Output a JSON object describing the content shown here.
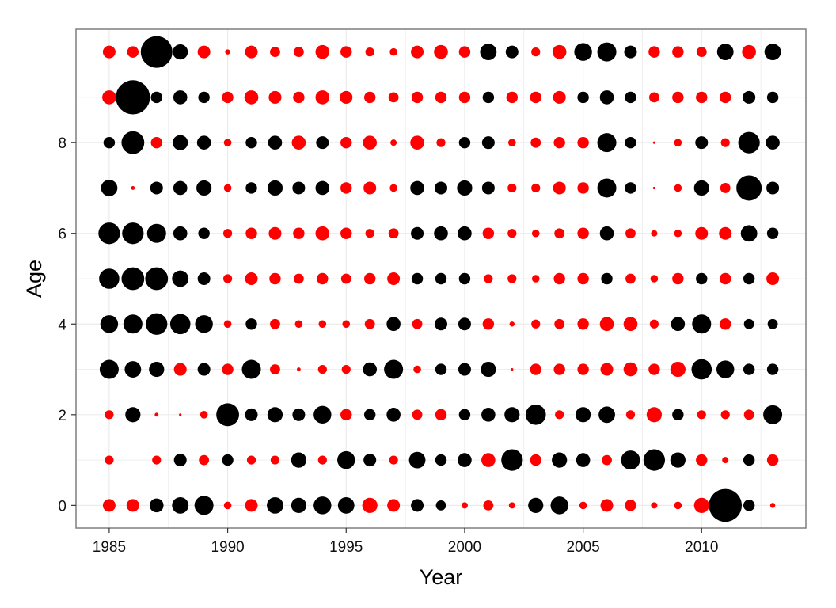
{
  "chart_data": {
    "type": "scatter",
    "xlabel": "Year",
    "ylabel": "Age",
    "xlim": [
      1983.6,
      2014.4
    ],
    "ylim": [
      -0.5,
      10.5
    ],
    "x_ticks": [
      1985,
      1990,
      1995,
      2000,
      2005,
      2010
    ],
    "y_ticks": [
      0,
      2,
      4,
      6,
      8
    ],
    "grid": true,
    "legend": "none",
    "colors": {
      "positive": "#000000",
      "negative": "#ff0000",
      "panel_border": "#7f7f7f",
      "grid": "#ebebeb"
    },
    "encoding": "size shows magnitude; black marks are positive values, red marks are negative values",
    "years": [
      1985,
      1986,
      1987,
      1988,
      1989,
      1990,
      1991,
      1992,
      1993,
      1994,
      1995,
      1996,
      1997,
      1998,
      1999,
      2000,
      2001,
      2002,
      2003,
      2004,
      2005,
      2006,
      2007,
      2008,
      2009,
      2010,
      2011,
      2012,
      2013
    ],
    "ages": [
      0,
      1,
      2,
      3,
      4,
      5,
      6,
      7,
      8,
      9,
      10
    ],
    "values": [
      [
        -0.5,
        -0.5,
        0.55,
        0.65,
        0.75,
        -0.3,
        -0.5,
        0.65,
        0.6,
        0.7,
        0.65,
        -0.6,
        -0.5,
        0.5,
        0.4,
        -0.25,
        -0.4,
        -0.25,
        0.6,
        0.7,
        -0.3,
        -0.5,
        -0.45,
        -0.25,
        -0.3,
        -0.6,
        1.3,
        0.45,
        -0.2
      ],
      [
        -0.35,
        0,
        -0.35,
        0.5,
        -0.4,
        0.45,
        -0.35,
        -0.35,
        0.6,
        -0.35,
        0.7,
        0.5,
        -0.35,
        0.65,
        0.45,
        0.55,
        -0.55,
        0.85,
        -0.45,
        0.6,
        0.55,
        -0.4,
        0.75,
        0.85,
        0.6,
        -0.45,
        -0.25,
        0.45,
        -0.45
      ],
      [
        -0.35,
        0.6,
        -0.15,
        -0.1,
        -0.3,
        0.9,
        0.5,
        0.6,
        0.5,
        0.7,
        -0.45,
        0.45,
        0.55,
        -0.4,
        -0.45,
        0.45,
        0.55,
        0.6,
        0.8,
        -0.35,
        0.6,
        0.65,
        -0.35,
        -0.6,
        0.45,
        -0.35,
        -0.35,
        -0.4,
        0.75
      ],
      [
        0.75,
        0.65,
        0.6,
        -0.5,
        0.5,
        -0.45,
        0.75,
        -0.4,
        -0.15,
        -0.35,
        -0.35,
        0.55,
        0.75,
        -0.3,
        0.45,
        0.5,
        0.6,
        -0.1,
        -0.45,
        -0.45,
        -0.45,
        -0.5,
        -0.55,
        -0.45,
        -0.6,
        0.8,
        0.7,
        0.45,
        0.45
      ],
      [
        0.7,
        0.75,
        0.85,
        0.8,
        0.7,
        -0.3,
        0.45,
        -0.4,
        -0.3,
        -0.3,
        -0.3,
        -0.4,
        0.55,
        -0.4,
        0.5,
        0.5,
        -0.45,
        -0.2,
        -0.35,
        -0.4,
        -0.45,
        -0.55,
        -0.55,
        -0.35,
        0.55,
        0.75,
        -0.45,
        0.4,
        0.4
      ],
      [
        0.8,
        0.9,
        0.9,
        0.65,
        0.5,
        -0.35,
        -0.5,
        -0.45,
        -0.4,
        -0.45,
        -0.4,
        -0.45,
        -0.5,
        0.45,
        0.45,
        0.45,
        -0.35,
        -0.35,
        -0.3,
        -0.45,
        -0.45,
        0.45,
        -0.4,
        -0.3,
        -0.45,
        0.45,
        -0.45,
        0.45,
        -0.5
      ],
      [
        0.85,
        0.85,
        0.75,
        0.55,
        0.45,
        -0.35,
        -0.45,
        -0.5,
        -0.45,
        -0.55,
        -0.45,
        -0.35,
        -0.4,
        0.5,
        0.55,
        0.55,
        -0.45,
        -0.35,
        -0.3,
        -0.4,
        -0.45,
        0.55,
        -0.4,
        -0.25,
        -0.3,
        -0.5,
        -0.5,
        0.65,
        0.45
      ],
      [
        0.65,
        -0.15,
        0.5,
        0.55,
        0.6,
        -0.3,
        0.45,
        0.6,
        0.5,
        0.55,
        -0.45,
        -0.5,
        -0.3,
        0.55,
        0.5,
        0.6,
        0.5,
        -0.35,
        -0.35,
        -0.5,
        -0.45,
        0.75,
        0.45,
        -0.1,
        -0.3,
        0.6,
        -0.4,
        1.0,
        0.5
      ],
      [
        0.45,
        0.9,
        -0.45,
        0.6,
        0.55,
        -0.3,
        0.45,
        0.55,
        -0.55,
        0.5,
        -0.45,
        -0.55,
        -0.25,
        -0.55,
        -0.35,
        0.45,
        0.5,
        -0.3,
        -0.4,
        -0.45,
        -0.45,
        0.75,
        0.45,
        -0.1,
        -0.3,
        0.5,
        -0.35,
        0.85,
        0.55
      ],
      [
        -0.55,
        1.35,
        0.45,
        0.55,
        0.45,
        -0.45,
        -0.55,
        -0.5,
        -0.45,
        -0.55,
        -0.5,
        -0.45,
        -0.4,
        -0.45,
        -0.45,
        -0.45,
        0.45,
        -0.45,
        -0.45,
        -0.5,
        0.45,
        0.55,
        0.45,
        -0.4,
        -0.45,
        -0.45,
        -0.45,
        0.5,
        0.45
      ],
      [
        -0.5,
        -0.45,
        1.25,
        0.6,
        -0.5,
        -0.2,
        -0.5,
        -0.4,
        -0.4,
        -0.55,
        -0.45,
        -0.35,
        -0.3,
        -0.5,
        -0.55,
        -0.45,
        0.65,
        0.5,
        -0.35,
        -0.55,
        0.7,
        0.75,
        0.5,
        -0.45,
        -0.45,
        -0.4,
        0.65,
        -0.55,
        0.65
      ]
    ]
  }
}
